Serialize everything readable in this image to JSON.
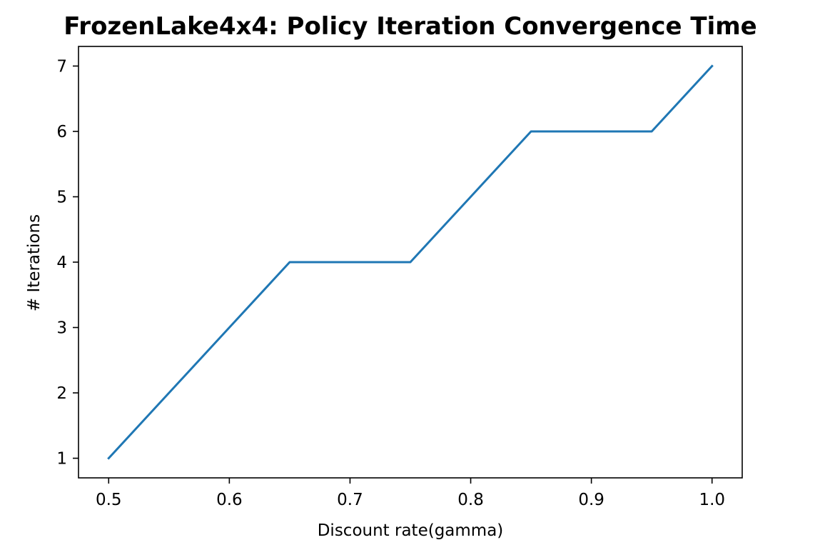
{
  "chart_data": {
    "type": "line",
    "title": "FrozenLake4x4: Policy Iteration Convergence Time",
    "xlabel": "Discount rate(gamma)",
    "ylabel": "# Iterations",
    "x": [
      0.5,
      0.55,
      0.6,
      0.65,
      0.7,
      0.75,
      0.8,
      0.85,
      0.9,
      0.95,
      1.0
    ],
    "series": [
      {
        "values": [
          1,
          2,
          3,
          4,
          4,
          4,
          5,
          6,
          6,
          6,
          7
        ],
        "color": "#1f77b4"
      }
    ],
    "xlim": [
      0.475,
      1.025
    ],
    "ylim": [
      0.7,
      7.3
    ],
    "xticks": [
      0.5,
      0.6,
      0.7,
      0.8,
      0.9,
      1.0
    ],
    "xtick_labels": [
      "0.5",
      "0.6",
      "0.7",
      "0.8",
      "0.9",
      "1.0"
    ],
    "yticks": [
      1,
      2,
      3,
      4,
      5,
      6,
      7
    ],
    "ytick_labels": [
      "1",
      "2",
      "3",
      "4",
      "5",
      "6",
      "7"
    ],
    "grid": false,
    "legend": "none"
  }
}
